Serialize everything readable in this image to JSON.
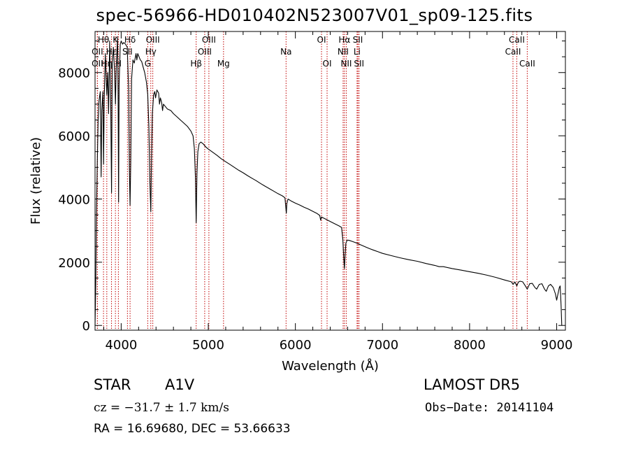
{
  "title": "spec-56966-HD010402N523007V01_sp09-125.fits",
  "object": {
    "type": "STAR",
    "subclass": "A1V"
  },
  "survey": "LAMOST DR5",
  "cz_text": "cz = −31.7 ± 1.7 km/s",
  "obs_date_text": "Obs−Date: 20141104",
  "radec_text": "RA =  16.69680, DEC =  53.66633",
  "chart_data": {
    "type": "line",
    "title": "spec-56966-HD010402N523007V01_sp09-125.fits",
    "xlabel": "Wavelength (Å)",
    "ylabel": "Flux (relative)",
    "xlim": [
      3700,
      9100
    ],
    "ylim": [
      -150,
      9300
    ],
    "x_ticks": [
      4000,
      5000,
      6000,
      7000,
      8000,
      9000
    ],
    "y_ticks": [
      0,
      2000,
      4000,
      6000,
      8000
    ],
    "grid": false,
    "line_color": "#000000",
    "marker_color": "#c00000",
    "spectrum": [
      [
        3700,
        0
      ],
      [
        3708,
        1300
      ],
      [
        3716,
        3500
      ],
      [
        3725,
        5000
      ],
      [
        3735,
        6500
      ],
      [
        3745,
        7100
      ],
      [
        3760,
        7400
      ],
      [
        3770,
        4700
      ],
      [
        3778,
        6800
      ],
      [
        3790,
        7400
      ],
      [
        3798,
        5100
      ],
      [
        3806,
        7200
      ],
      [
        3818,
        8600
      ],
      [
        3835,
        7300
      ],
      [
        3845,
        8000
      ],
      [
        3856,
        6700
      ],
      [
        3868,
        9000
      ],
      [
        3880,
        7100
      ],
      [
        3889,
        4200
      ],
      [
        3897,
        8300
      ],
      [
        3910,
        8800
      ],
      [
        3925,
        8000
      ],
      [
        3934,
        7000
      ],
      [
        3945,
        8300
      ],
      [
        3958,
        9100
      ],
      [
        3965,
        7300
      ],
      [
        3970,
        3900
      ],
      [
        3976,
        7600
      ],
      [
        3990,
        8900
      ],
      [
        4000,
        9000
      ],
      [
        4015,
        8900
      ],
      [
        4030,
        8950
      ],
      [
        4050,
        8900
      ],
      [
        4070,
        8800
      ],
      [
        4085,
        7500
      ],
      [
        4094,
        5000
      ],
      [
        4102,
        3800
      ],
      [
        4110,
        5200
      ],
      [
        4120,
        7800
      ],
      [
        4135,
        8400
      ],
      [
        4150,
        8300
      ],
      [
        4170,
        8600
      ],
      [
        4180,
        8400
      ],
      [
        4190,
        8600
      ],
      [
        4205,
        8500
      ],
      [
        4220,
        8400
      ],
      [
        4235,
        8350
      ],
      [
        4250,
        8200
      ],
      [
        4270,
        8000
      ],
      [
        4290,
        7700
      ],
      [
        4305,
        7300
      ],
      [
        4318,
        6300
      ],
      [
        4330,
        4500
      ],
      [
        4340,
        3600
      ],
      [
        4348,
        5300
      ],
      [
        4358,
        6700
      ],
      [
        4372,
        7300
      ],
      [
        4385,
        7400
      ],
      [
        4395,
        7200
      ],
      [
        4410,
        7450
      ],
      [
        4430,
        7350
      ],
      [
        4440,
        7000
      ],
      [
        4450,
        7200
      ],
      [
        4465,
        7050
      ],
      [
        4475,
        6800
      ],
      [
        4485,
        7000
      ],
      [
        4500,
        6950
      ],
      [
        4530,
        6850
      ],
      [
        4570,
        6800
      ],
      [
        4600,
        6700
      ],
      [
        4640,
        6600
      ],
      [
        4680,
        6500
      ],
      [
        4720,
        6400
      ],
      [
        4760,
        6300
      ],
      [
        4800,
        6150
      ],
      [
        4825,
        6000
      ],
      [
        4840,
        5600
      ],
      [
        4852,
        4700
      ],
      [
        4861,
        3250
      ],
      [
        4870,
        4800
      ],
      [
        4880,
        5500
      ],
      [
        4895,
        5750
      ],
      [
        4915,
        5800
      ],
      [
        4940,
        5750
      ],
      [
        4970,
        5650
      ],
      [
        5000,
        5580
      ],
      [
        5050,
        5480
      ],
      [
        5100,
        5380
      ],
      [
        5150,
        5270
      ],
      [
        5200,
        5180
      ],
      [
        5250,
        5090
      ],
      [
        5300,
        5000
      ],
      [
        5350,
        4910
      ],
      [
        5400,
        4830
      ],
      [
        5450,
        4740
      ],
      [
        5500,
        4660
      ],
      [
        5550,
        4580
      ],
      [
        5600,
        4490
      ],
      [
        5650,
        4410
      ],
      [
        5700,
        4330
      ],
      [
        5750,
        4250
      ],
      [
        5800,
        4170
      ],
      [
        5850,
        4100
      ],
      [
        5880,
        4040
      ],
      [
        5890,
        3750
      ],
      [
        5896,
        3550
      ],
      [
        5902,
        3850
      ],
      [
        5915,
        4000
      ],
      [
        5950,
        3940
      ],
      [
        6000,
        3870
      ],
      [
        6050,
        3810
      ],
      [
        6100,
        3740
      ],
      [
        6150,
        3680
      ],
      [
        6200,
        3610
      ],
      [
        6250,
        3540
      ],
      [
        6280,
        3480
      ],
      [
        6290,
        3330
      ],
      [
        6300,
        3430
      ],
      [
        6350,
        3360
      ],
      [
        6400,
        3290
      ],
      [
        6450,
        3220
      ],
      [
        6500,
        3150
      ],
      [
        6530,
        3100
      ],
      [
        6545,
        2700
      ],
      [
        6555,
        2150
      ],
      [
        6563,
        1800
      ],
      [
        6570,
        2200
      ],
      [
        6580,
        2600
      ],
      [
        6595,
        2700
      ],
      [
        6620,
        2690
      ],
      [
        6650,
        2660
      ],
      [
        6700,
        2610
      ],
      [
        6750,
        2550
      ],
      [
        6800,
        2490
      ],
      [
        6850,
        2430
      ],
      [
        6900,
        2380
      ],
      [
        6950,
        2330
      ],
      [
        7000,
        2280
      ],
      [
        7100,
        2210
      ],
      [
        7200,
        2140
      ],
      [
        7300,
        2080
      ],
      [
        7400,
        2030
      ],
      [
        7500,
        1960
      ],
      [
        7600,
        1900
      ],
      [
        7650,
        1860
      ],
      [
        7700,
        1860
      ],
      [
        7800,
        1800
      ],
      [
        7900,
        1750
      ],
      [
        8000,
        1700
      ],
      [
        8100,
        1650
      ],
      [
        8200,
        1590
      ],
      [
        8300,
        1520
      ],
      [
        8400,
        1440
      ],
      [
        8480,
        1380
      ],
      [
        8500,
        1300
      ],
      [
        8520,
        1380
      ],
      [
        8542,
        1250
      ],
      [
        8560,
        1370
      ],
      [
        8580,
        1400
      ],
      [
        8610,
        1380
      ],
      [
        8640,
        1250
      ],
      [
        8662,
        1150
      ],
      [
        8690,
        1320
      ],
      [
        8720,
        1330
      ],
      [
        8750,
        1200
      ],
      [
        8770,
        1150
      ],
      [
        8800,
        1300
      ],
      [
        8830,
        1320
      ],
      [
        8860,
        1150
      ],
      [
        8880,
        1080
      ],
      [
        8905,
        1250
      ],
      [
        8930,
        1300
      ],
      [
        8960,
        1200
      ],
      [
        8985,
        1000
      ],
      [
        9000,
        800
      ],
      [
        9015,
        1000
      ],
      [
        9030,
        1200
      ],
      [
        9040,
        1250
      ],
      [
        9050,
        650
      ],
      [
        9058,
        0
      ]
    ],
    "line_markers": [
      {
        "name": "Hθ",
        "wavelength": 3797,
        "row": 0
      },
      {
        "name": "OII",
        "wavelength": 3727,
        "row": 1
      },
      {
        "name": "OII",
        "wavelength": 3727,
        "row": 2
      },
      {
        "name": "K",
        "wavelength": 3934,
        "row": 0
      },
      {
        "name": "Hε",
        "wavelength": 3889,
        "row": 1
      },
      {
        "name": "Hη",
        "wavelength": 3835,
        "row": 2
      },
      {
        "name": "Hδ",
        "wavelength": 4102,
        "row": 0
      },
      {
        "name": "SII",
        "wavelength": 4072,
        "row": 1
      },
      {
        "name": "H",
        "wavelength": 3968,
        "row": 2
      },
      {
        "name": "OIII",
        "wavelength": 4363,
        "row": 0
      },
      {
        "name": "Hγ",
        "wavelength": 4340,
        "row": 1
      },
      {
        "name": "G",
        "wavelength": 4305,
        "row": 2
      },
      {
        "name": "OIII",
        "wavelength": 5007,
        "row": 0
      },
      {
        "name": "OIII",
        "wavelength": 4959,
        "row": 1
      },
      {
        "name": "Hβ",
        "wavelength": 4861,
        "row": 2
      },
      {
        "name": "Mg",
        "wavelength": 5175,
        "row": 2
      },
      {
        "name": "Na",
        "wavelength": 5893,
        "row": 1
      },
      {
        "name": "OI",
        "wavelength": 6300,
        "row": 0
      },
      {
        "name": "OI",
        "wavelength": 6364,
        "row": 2
      },
      {
        "name": "Hα",
        "wavelength": 6563,
        "row": 0
      },
      {
        "name": "NII",
        "wavelength": 6548,
        "row": 1
      },
      {
        "name": "NII",
        "wavelength": 6584,
        "row": 2
      },
      {
        "name": "SII",
        "wavelength": 6717,
        "row": 0
      },
      {
        "name": "Li",
        "wavelength": 6708,
        "row": 1
      },
      {
        "name": "SII",
        "wavelength": 6731,
        "row": 2
      },
      {
        "name": "CaII",
        "wavelength": 8542,
        "row": 0
      },
      {
        "name": "CaII",
        "wavelength": 8498,
        "row": 1
      },
      {
        "name": "CaII",
        "wavelength": 8662,
        "row": 2
      }
    ]
  }
}
